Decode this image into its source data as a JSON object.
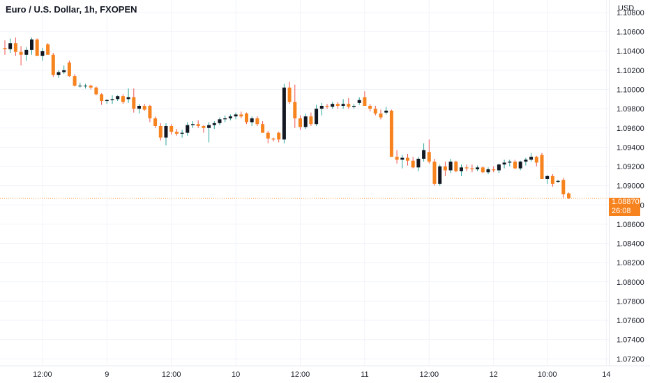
{
  "header": {
    "title": "Euro / U.S. Dollar, 1h, FXOPEN",
    "currency": "USD"
  },
  "last_price": {
    "value": "1.08870",
    "countdown": "26:08"
  },
  "colors": {
    "up": "#131722",
    "down": "#f7831e",
    "up_wick": "#26a69a",
    "down_wick": "#ef5350",
    "grid": "#f0f3fa",
    "last_price_line": "#f7831e"
  },
  "chart_data": {
    "type": "candlestick",
    "title": "Euro / U.S. Dollar, 1h, FXOPEN",
    "ylabel": "USD",
    "ylim": [
      1.0713,
      1.1093
    ],
    "grid": true,
    "y_ticks": [
      "1.10800",
      "1.10600",
      "1.10400",
      "1.10200",
      "1.10000",
      "1.09800",
      "1.09600",
      "1.09400",
      "1.09200",
      "1.09000",
      "1.08800",
      "1.08600",
      "1.08400",
      "1.08200",
      "1.08000",
      "1.07800",
      "1.07600",
      "1.07400",
      "1.07200"
    ],
    "x_ticks": [
      {
        "label": "12:00",
        "index": 7
      },
      {
        "label": "9",
        "index": 19
      },
      {
        "label": "12:00",
        "index": 31
      },
      {
        "label": "10",
        "index": 43
      },
      {
        "label": "12:00",
        "index": 55
      },
      {
        "label": "11",
        "index": 67
      },
      {
        "label": "12:00",
        "index": 79
      },
      {
        "label": "12",
        "index": 91
      },
      {
        "label": "10:00",
        "index": 101
      },
      {
        "label": "14",
        "index": 112
      }
    ],
    "ohlc": [
      [
        1.1043,
        1.1051,
        1.1036,
        1.1042
      ],
      [
        1.1042,
        1.1053,
        1.1038,
        1.1048
      ],
      [
        1.1048,
        1.1054,
        1.1035,
        1.1039
      ],
      [
        1.1039,
        1.1045,
        1.1025,
        1.1036
      ],
      [
        1.1036,
        1.1044,
        1.103,
        1.1041
      ],
      [
        1.1041,
        1.1054,
        1.1036,
        1.1052
      ],
      [
        1.1052,
        1.1053,
        1.1035,
        1.1035
      ],
      [
        1.1035,
        1.1043,
        1.103,
        1.104
      ],
      [
        1.1047,
        1.1048,
        1.1036,
        1.1036
      ],
      [
        1.1036,
        1.1038,
        1.1013,
        1.1015
      ],
      [
        1.1015,
        1.102,
        1.1012,
        1.1018
      ],
      [
        1.1018,
        1.1025,
        1.1016,
        1.102
      ],
      [
        1.1028,
        1.103,
        1.1013,
        1.1014
      ],
      [
        1.1014,
        1.1016,
        1.1003,
        1.1004
      ],
      [
        1.1004,
        1.1007,
        1.1002,
        1.1004
      ],
      [
        1.1004,
        1.1006,
        1.1001,
        1.1004
      ],
      [
        1.1004,
        1.1005,
        1.1,
        1.1002
      ],
      [
        1.1002,
        1.1003,
        1.0994,
        1.0995
      ],
      [
        1.0995,
        1.0996,
        1.0984,
        1.0988
      ],
      [
        1.0988,
        1.099,
        1.0985,
        1.0989
      ],
      [
        1.0989,
        1.0994,
        1.0985,
        1.099
      ],
      [
        1.099,
        1.0994,
        1.0988,
        1.0993
      ],
      [
        1.0993,
        1.0995,
        1.0985,
        1.0987
      ],
      [
        1.099,
        1.1001,
        1.0986,
        1.0992
      ],
      [
        1.0992,
        1.1001,
        1.0976,
        1.098
      ],
      [
        1.098,
        1.0985,
        1.0975,
        1.0983
      ],
      [
        1.0983,
        1.0985,
        1.0978,
        1.0979
      ],
      [
        1.0983,
        1.0984,
        1.0966,
        1.097
      ],
      [
        1.097,
        1.0972,
        1.096,
        1.0962
      ],
      [
        1.0962,
        1.0965,
        1.0947,
        1.095
      ],
      [
        1.095,
        1.0965,
        1.0942,
        1.0962
      ],
      [
        1.0962,
        1.0964,
        1.0953,
        1.0956
      ],
      [
        1.0956,
        1.0959,
        1.0952,
        1.0954
      ],
      [
        1.0954,
        1.0958,
        1.095,
        1.0955
      ],
      [
        1.0955,
        1.0966,
        1.0952,
        1.0963
      ],
      [
        1.0963,
        1.0967,
        1.096,
        1.0964
      ],
      [
        1.0964,
        1.0968,
        1.096,
        1.0962
      ],
      [
        1.0962,
        1.0963,
        1.0955,
        1.096
      ],
      [
        1.096,
        1.0966,
        1.0945,
        1.0963
      ],
      [
        1.0963,
        1.0967,
        1.0959,
        1.0965
      ],
      [
        1.0965,
        1.0971,
        1.0963,
        1.0969
      ],
      [
        1.0969,
        1.0973,
        1.0966,
        1.097
      ],
      [
        1.097,
        1.0974,
        1.0968,
        1.0972
      ],
      [
        1.0972,
        1.0976,
        1.0969,
        1.0974
      ],
      [
        1.0974,
        1.0977,
        1.097,
        1.0972
      ],
      [
        1.0975,
        1.0976,
        1.0964,
        1.0966
      ],
      [
        1.0966,
        1.0972,
        1.0962,
        1.097
      ],
      [
        1.097,
        1.0972,
        1.0962,
        1.0964
      ],
      [
        1.0964,
        1.0967,
        1.0955,
        1.0955
      ],
      [
        1.0955,
        1.0957,
        1.0944,
        1.0949
      ],
      [
        1.0949,
        1.095,
        1.0946,
        1.0948
      ],
      [
        1.0955,
        1.0956,
        1.0945,
        1.0948
      ],
      [
        1.0948,
        1.1006,
        1.0944,
        1.1002
      ],
      [
        1.1002,
        1.1008,
        1.0985,
        1.0987
      ],
      [
        1.0987,
        1.1005,
        1.096,
        1.097
      ],
      [
        1.097,
        1.0973,
        1.0958,
        1.0961
      ],
      [
        1.0961,
        1.0975,
        1.0959,
        1.0972
      ],
      [
        1.0972,
        1.0976,
        1.0962,
        1.0964
      ],
      [
        1.0964,
        1.0984,
        1.0962,
        1.098
      ],
      [
        1.098,
        1.0986,
        1.0973,
        1.0983
      ],
      [
        1.0983,
        1.0985,
        1.098,
        1.0982
      ],
      [
        1.0982,
        1.0987,
        1.098,
        1.0985
      ],
      [
        1.0985,
        1.0987,
        1.098,
        1.0983
      ],
      [
        1.0983,
        1.099,
        1.098,
        1.0985
      ],
      [
        1.0985,
        1.0991,
        1.098,
        1.0982
      ],
      [
        1.0982,
        1.0985,
        1.098,
        1.0983
      ],
      [
        1.0986,
        1.0992,
        1.0984,
        1.0989
      ],
      [
        1.0992,
        1.0998,
        1.0983,
        1.0983
      ],
      [
        1.0983,
        1.0985,
        1.0977,
        1.098
      ],
      [
        1.098,
        1.0983,
        1.0973,
        1.0975
      ],
      [
        1.0975,
        1.0979,
        1.0969,
        1.0971
      ],
      [
        1.0976,
        1.0982,
        1.0974,
        1.0978
      ],
      [
        1.0978,
        1.0979,
        1.093,
        1.093
      ],
      [
        1.093,
        1.0937,
        1.0923,
        1.0927
      ],
      [
        1.0927,
        1.0932,
        1.0918,
        1.0929
      ],
      [
        1.0929,
        1.0933,
        1.0921,
        1.0926
      ],
      [
        1.0926,
        1.093,
        1.0918,
        1.0919
      ],
      [
        1.0919,
        1.093,
        1.0915,
        1.0928
      ],
      [
        1.0928,
        1.0944,
        1.0925,
        1.0937
      ],
      [
        1.0935,
        1.0948,
        1.0923,
        1.0925
      ],
      [
        1.0925,
        1.0928,
        1.09,
        1.0902
      ],
      [
        1.0902,
        1.0922,
        1.09,
        1.092
      ],
      [
        1.092,
        1.0925,
        1.091,
        1.0916
      ],
      [
        1.0916,
        1.0928,
        1.0913,
        1.0925
      ],
      [
        1.0925,
        1.0926,
        1.0914,
        1.0915
      ],
      [
        1.0915,
        1.0922,
        1.091,
        1.0919
      ],
      [
        1.0919,
        1.0922,
        1.0915,
        1.0918
      ],
      [
        1.0918,
        1.0922,
        1.0914,
        1.0917
      ],
      [
        1.0917,
        1.0921,
        1.0915,
        1.0919
      ],
      [
        1.0919,
        1.092,
        1.0913,
        1.0914
      ],
      [
        1.0914,
        1.0919,
        1.0912,
        1.0917
      ],
      [
        1.0917,
        1.092,
        1.0914,
        1.0916
      ],
      [
        1.0916,
        1.0923,
        1.0913,
        1.0922
      ],
      [
        1.0922,
        1.0927,
        1.0918,
        1.0924
      ],
      [
        1.0924,
        1.0927,
        1.092,
        1.0925
      ],
      [
        1.0925,
        1.0927,
        1.0917,
        1.0918
      ],
      [
        1.0918,
        1.0926,
        1.0916,
        1.0925
      ],
      [
        1.0925,
        1.0929,
        1.0921,
        1.0927
      ],
      [
        1.0927,
        1.0934,
        1.0925,
        1.093
      ],
      [
        1.093,
        1.0931,
        1.092,
        1.0924
      ],
      [
        1.0932,
        1.0934,
        1.0907,
        1.0907
      ],
      [
        1.0907,
        1.0911,
        1.0902,
        1.091
      ],
      [
        1.091,
        1.0912,
        1.0899,
        1.0902
      ],
      [
        1.0904,
        1.0906,
        1.0903,
        1.0905
      ],
      [
        1.0906,
        1.0908,
        1.0887,
        1.0891
      ],
      [
        1.0892,
        1.0893,
        1.0886,
        1.0887
      ]
    ]
  }
}
